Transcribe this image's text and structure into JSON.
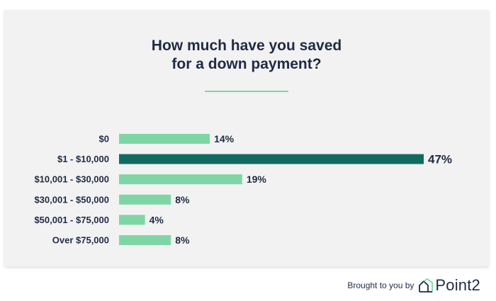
{
  "title_lines": [
    "How much have you saved",
    "for a down payment?"
  ],
  "colors": {
    "bar": "#7fd6a5",
    "highlight": "#126b62",
    "text": "#1f2b44"
  },
  "chart_data": {
    "type": "bar",
    "orientation": "horizontal",
    "categories": [
      "$0",
      "$1 - $10,000",
      "$10,001 - $30,000",
      "$30,001 - $50,000",
      "$50,001 - $75,000",
      "Over $75,000"
    ],
    "values": [
      14,
      47,
      19,
      8,
      4,
      8
    ],
    "value_labels": [
      "14%",
      "47%",
      "19%",
      "8%",
      "4%",
      "8%"
    ],
    "highlight_index": 1,
    "xlim": [
      0,
      47
    ],
    "grid": false,
    "title": "How much have you saved for a down payment?"
  },
  "footer": {
    "brought_by": "Brought to you by",
    "brand": "Point2",
    "brand_icon": "house-outline-icon"
  }
}
